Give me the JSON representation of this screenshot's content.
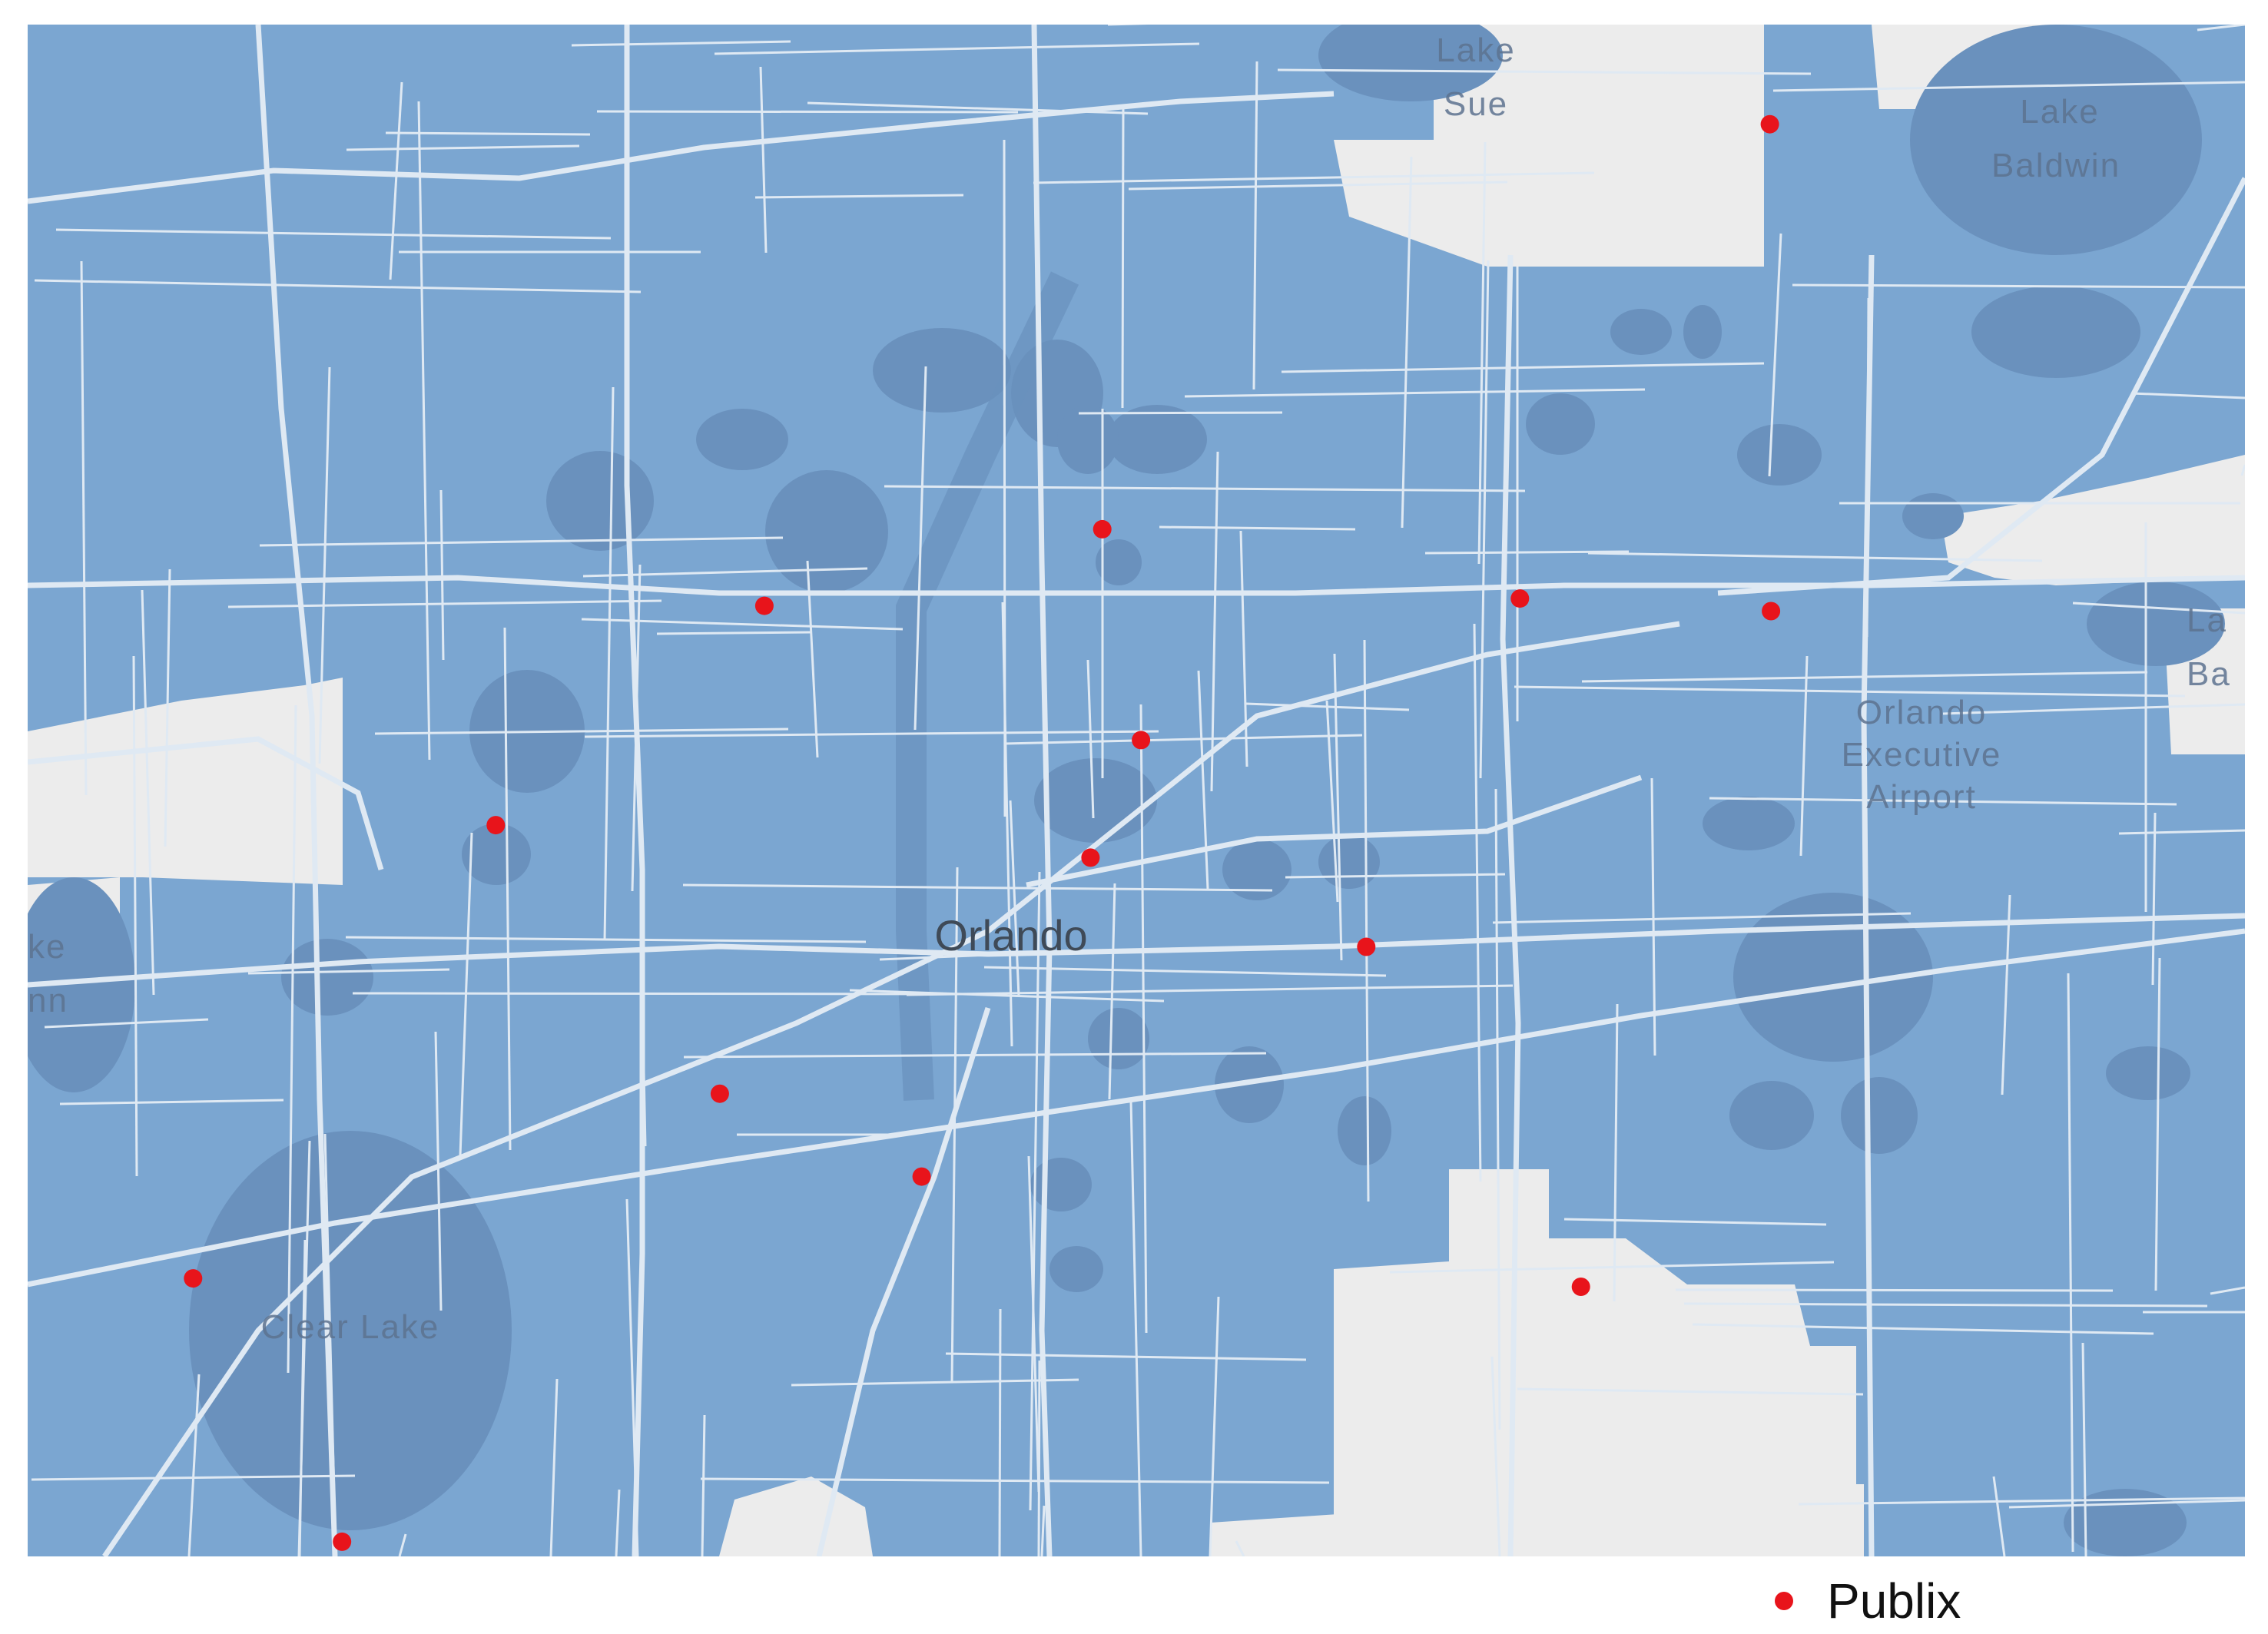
{
  "map": {
    "city_label": "Orlando",
    "water_labels": {
      "lake_sue": [
        "Lake",
        "Sue"
      ],
      "lake_baldwin": [
        "Lake",
        "Baldwin"
      ],
      "clear_lake": "Clear Lake",
      "left_edge": [
        "ke",
        "nn"
      ],
      "right_edge": [
        "La",
        "Ba"
      ]
    },
    "airport_label": [
      "Orlando",
      "Executive",
      "Airport"
    ],
    "colors": {
      "coverage_fill": "#7ba6d1",
      "water": "#6a91bd",
      "uncovered_land": "#ececec",
      "road": "#dfe9f3",
      "store_marker": "#e8141b"
    }
  },
  "legend": {
    "label": "Publix",
    "marker_color": "#e8141b"
  },
  "stores": [
    {
      "name": "Publix",
      "lon": -81.3275,
      "lat": 28.6015
    },
    {
      "name": "Publix",
      "lon": -81.3844,
      "lat": 28.5629
    },
    {
      "name": "Publix",
      "lon": -81.4132,
      "lat": 28.5556
    },
    {
      "name": "Publix",
      "lon": -81.3488,
      "lat": 28.5563
    },
    {
      "name": "Publix",
      "lon": -81.3274,
      "lat": 28.5551
    },
    {
      "name": "Publix",
      "lon": -81.3811,
      "lat": 28.5428
    },
    {
      "name": "Publix",
      "lon": -81.4361,
      "lat": 28.5347
    },
    {
      "name": "Publix",
      "lon": -81.3854,
      "lat": 28.5316
    },
    {
      "name": "Publix",
      "lon": -81.3619,
      "lat": 28.5231
    },
    {
      "name": "Publix",
      "lon": -81.417,
      "lat": 28.5091
    },
    {
      "name": "Publix",
      "lon": -81.3998,
      "lat": 28.5012
    },
    {
      "name": "Publix",
      "lon": -81.4619,
      "lat": 28.4915
    },
    {
      "name": "Publix",
      "lon": -81.3436,
      "lat": 28.4907
    },
    {
      "name": "Publix",
      "lon": -81.4492,
      "lat": 28.4664
    }
  ],
  "bounds": {
    "lon": [
      -81.476,
      -81.287
    ],
    "lat": [
      28.465,
      28.611
    ]
  }
}
